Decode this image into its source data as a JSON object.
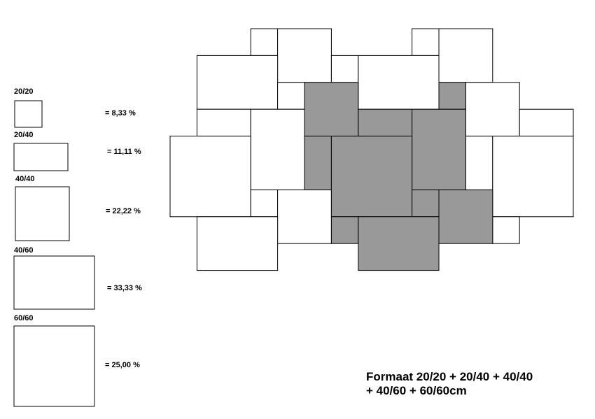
{
  "legend": {
    "items": [
      {
        "label": "20/20",
        "share": "= 8,33 %"
      },
      {
        "label": "20/40",
        "share": "= 11,11 %"
      },
      {
        "label": "40/40",
        "share": "= 22,22 %"
      },
      {
        "label": "40/60",
        "share": "= 33,33 %"
      },
      {
        "label": "60/60",
        "share": "= 25,00 %"
      }
    ]
  },
  "caption": {
    "lines": [
      "Formaat 20/20 + 20/40 + 40/40",
      "+ 40/60 + 60/60cm"
    ]
  }
}
